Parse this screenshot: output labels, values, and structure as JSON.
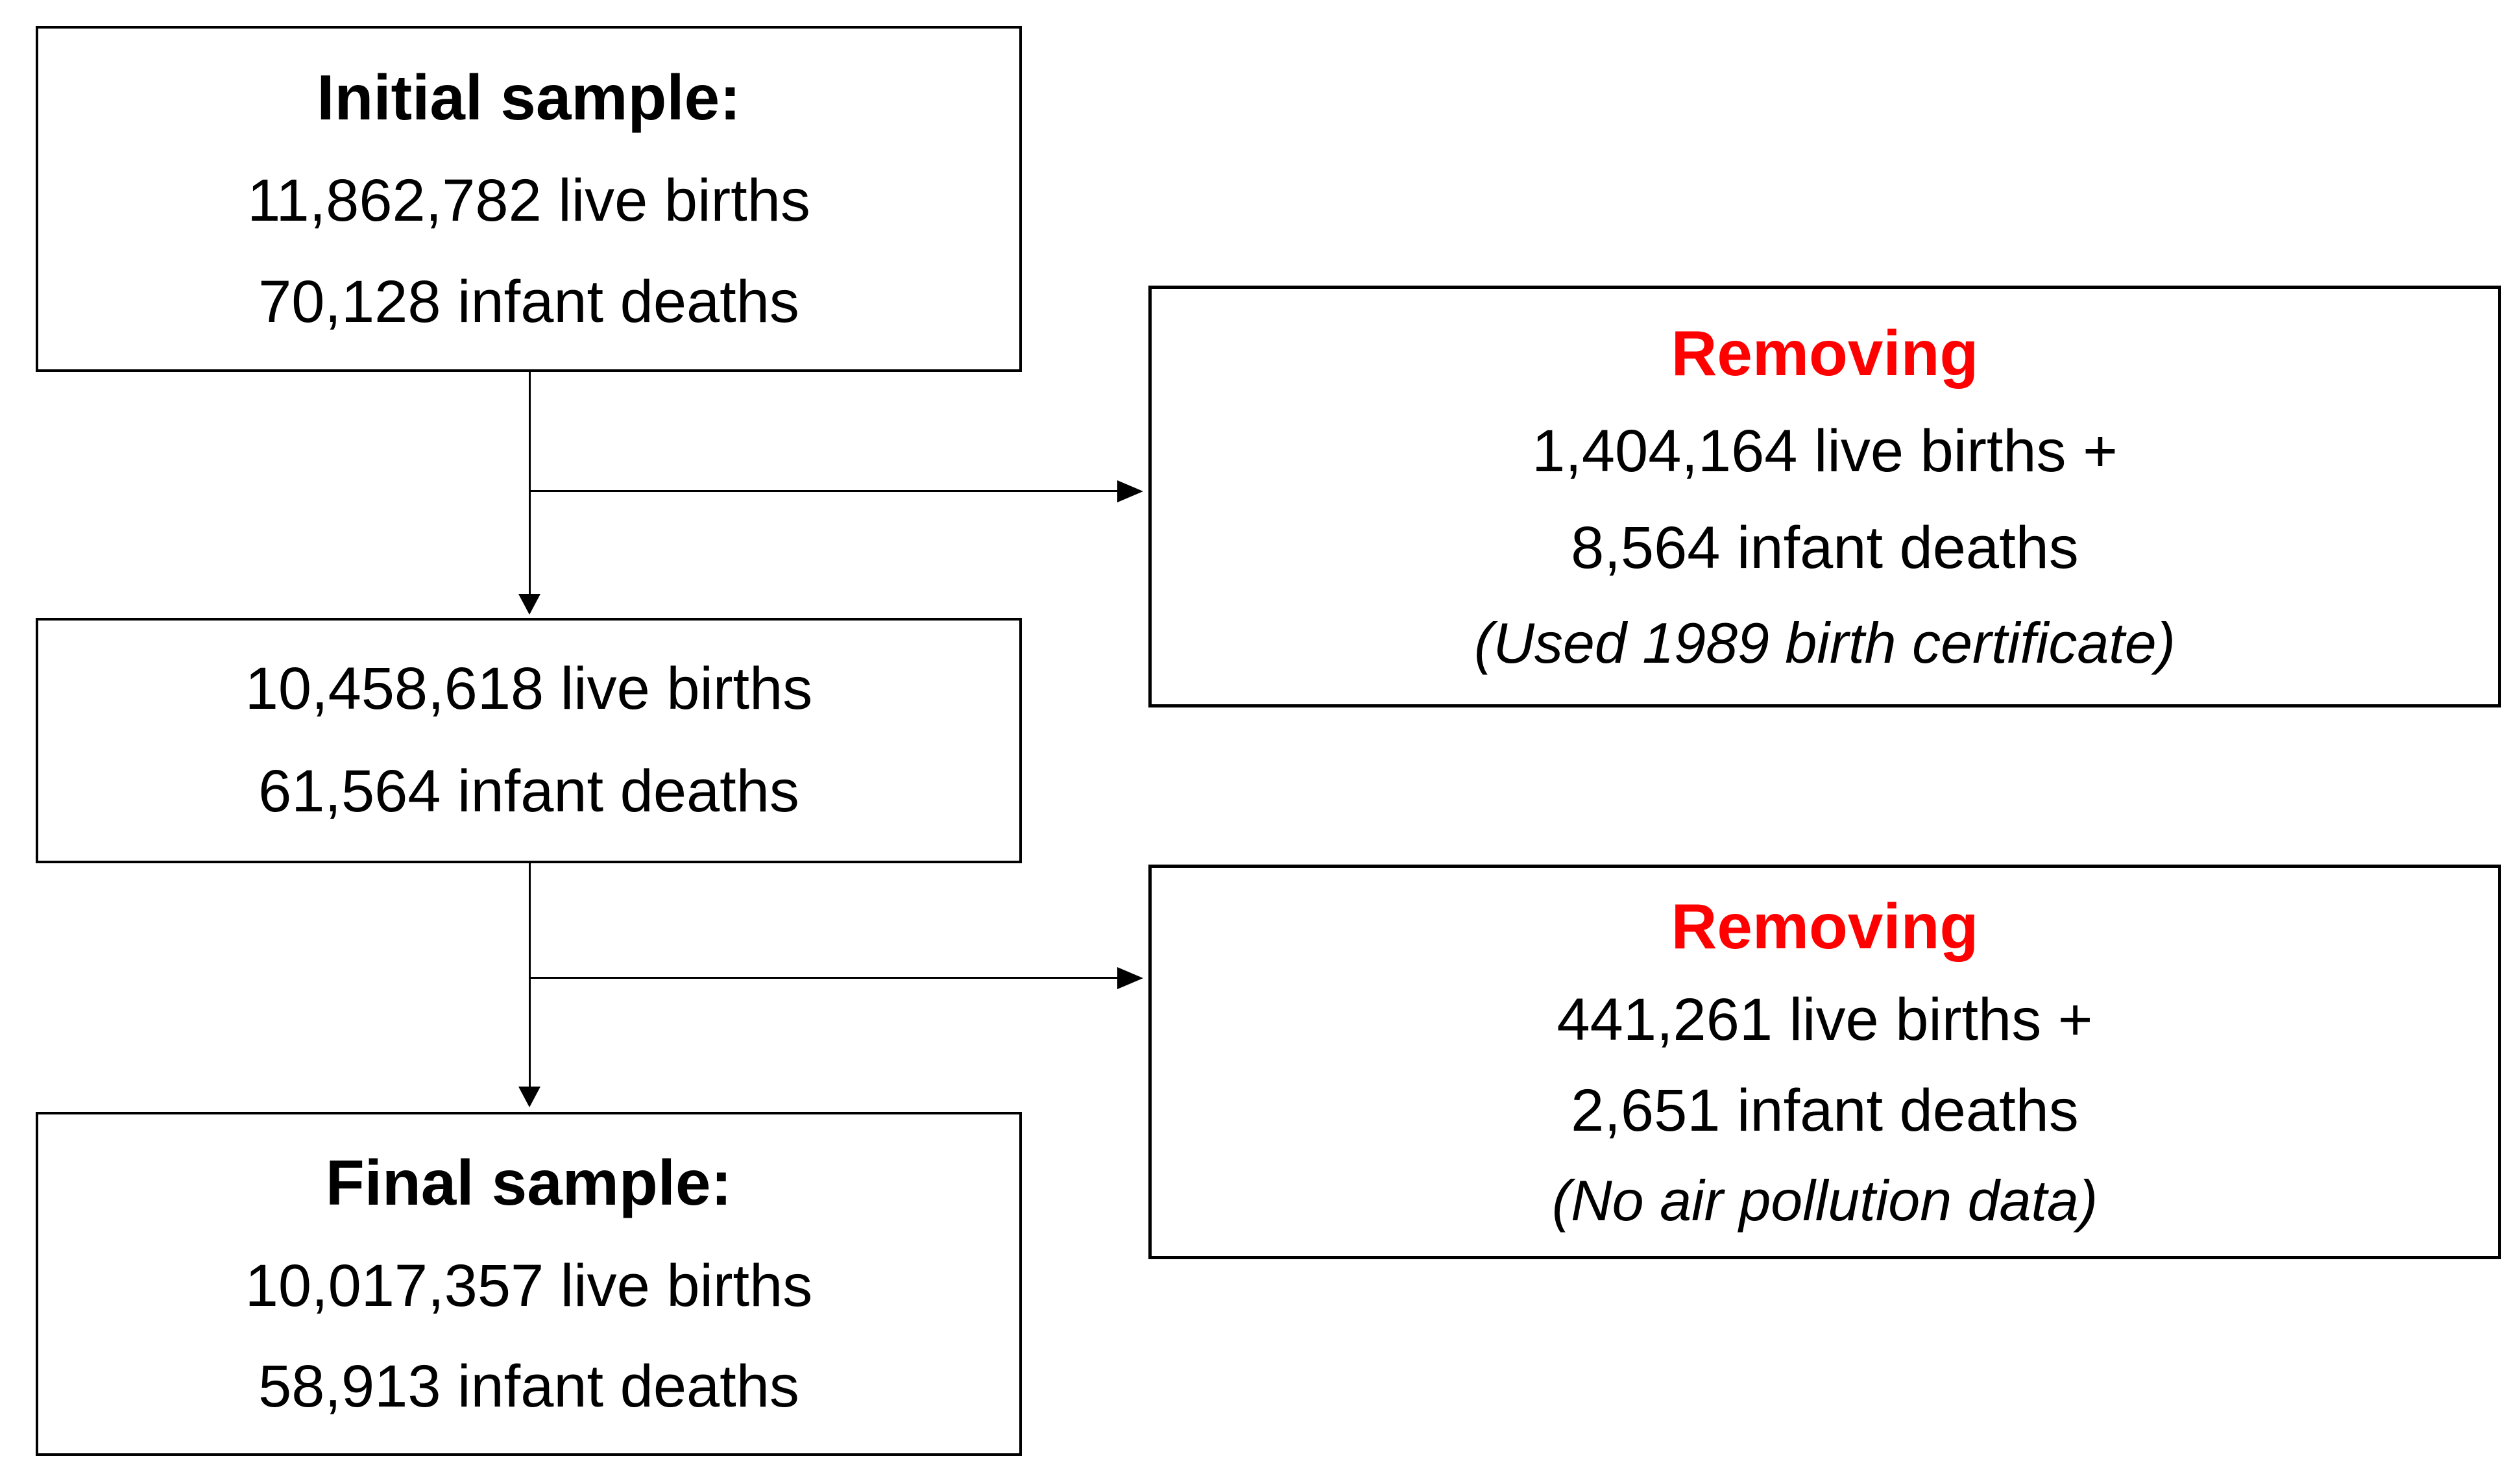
{
  "boxes": {
    "initial": {
      "title": "Initial sample:",
      "live_births": "11,862,782 live births",
      "infant_deaths": "70,128 infant deaths"
    },
    "removing1": {
      "title": "Removing",
      "live_births": "1,404,164 live births +",
      "infant_deaths": "8,564 infant deaths",
      "reason": "(Used 1989 birth certificate)"
    },
    "intermediate": {
      "live_births": "10,458,618 live births",
      "infant_deaths": "61,564 infant deaths"
    },
    "removing2": {
      "title": "Removing",
      "live_births": "441,261 live births +",
      "infant_deaths": "2,651 infant deaths",
      "reason": "(No air pollution data)"
    },
    "final": {
      "title": "Final sample:",
      "live_births": "10,017,357 live births",
      "infant_deaths": "58,913 infant deaths"
    }
  },
  "colors": {
    "removing_title": "#ff0000",
    "text": "#000000",
    "border": "#000000",
    "background": "#ffffff"
  }
}
